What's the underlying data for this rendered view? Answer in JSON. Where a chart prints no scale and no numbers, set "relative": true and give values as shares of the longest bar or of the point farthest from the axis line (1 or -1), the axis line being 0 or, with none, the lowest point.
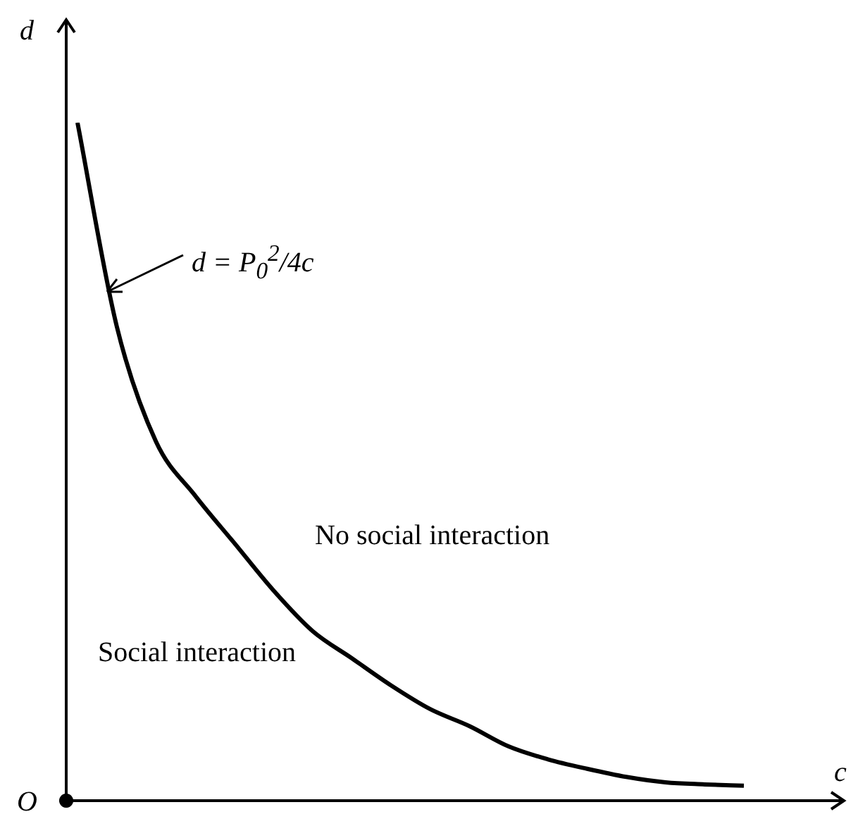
{
  "chart_data": {
    "type": "line",
    "relative": true,
    "xlabel": "c",
    "ylabel": "d",
    "marker": "none",
    "categories": [
      null,
      null,
      null,
      null,
      null,
      null,
      null,
      null,
      null,
      null,
      null,
      null,
      null,
      null,
      null,
      null,
      null,
      null
    ],
    "series": [
      {
        "color": "#000000",
        "values": [
          1.0,
          0.7,
          0.53,
          0.45,
          0.38,
          0.31,
          0.25,
          0.21,
          0.17,
          0.135,
          0.11,
          0.08,
          0.061,
          0.047,
          0.035,
          0.027,
          0.024,
          0.022
        ]
      }
    ],
    "annotations": [
      "d = P$_{0}$$^{2}$/4c",
      "No social interaction",
      "Social interaction",
      "O"
    ]
  }
}
